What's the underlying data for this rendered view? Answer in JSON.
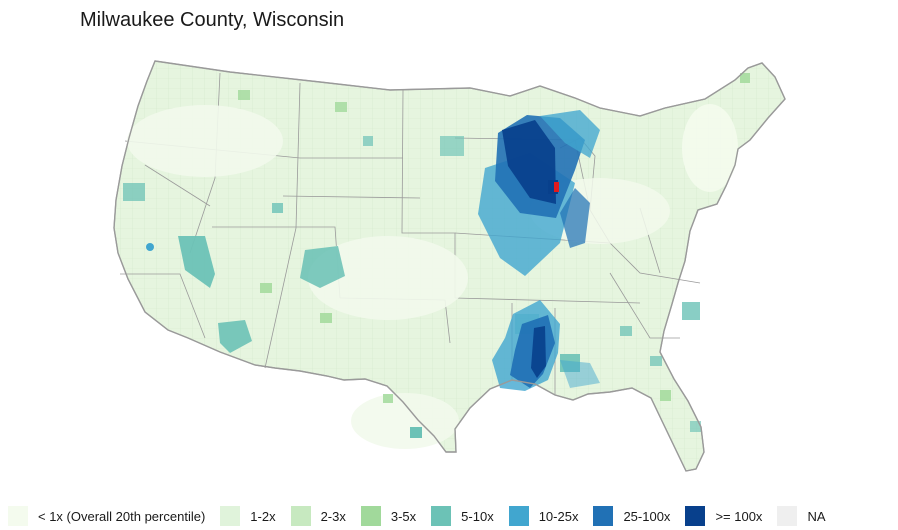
{
  "title": "Milwaukee County, Wisconsin",
  "map": {
    "region": "contiguous-united-states-counties",
    "highlighted_county": "Milwaukee County, Wisconsin",
    "highlight_color": "#e31a1c",
    "border_color": "#8c8c8c",
    "hotspots": [
      {
        "area": "Wisconsin",
        "category": ">= 100x"
      },
      {
        "area": "Upper Peninsula of Michigan",
        "category": "25-100x"
      },
      {
        "area": "Northern Illinois",
        "category": "25-100x"
      },
      {
        "area": "Mississippi Delta",
        "category": "25-100x"
      },
      {
        "area": "Western Nevada",
        "category": "5-10x"
      },
      {
        "area": "Southern Arizona",
        "category": "5-10x"
      },
      {
        "area": "Utah / Colorado interior",
        "category": "5-10x"
      }
    ]
  },
  "legend": {
    "items": [
      {
        "label": "< 1x (Overall 20th percentile)",
        "color": "#f4fbee"
      },
      {
        "label": "1-2x",
        "color": "#e0f3db"
      },
      {
        "label": "2-3x",
        "color": "#c7e9c0"
      },
      {
        "label": "3-5x",
        "color": "#a1d99b"
      },
      {
        "label": "5-10x",
        "color": "#6cc2b6"
      },
      {
        "label": "10-25x",
        "color": "#41a6cf"
      },
      {
        "label": "25-100x",
        "color": "#2171b5"
      },
      {
        "label": ">= 100x",
        "color": "#08408c"
      },
      {
        "label": "NA",
        "color": "#efefef"
      }
    ]
  }
}
